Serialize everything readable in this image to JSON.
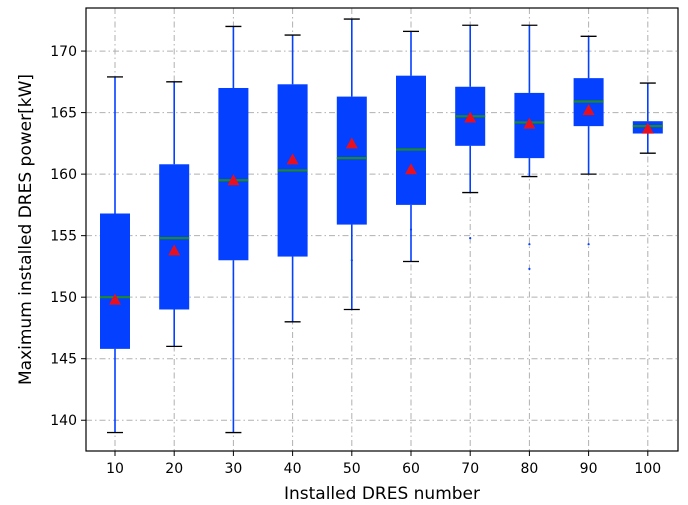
{
  "chart_data": {
    "type": "box",
    "xlabel": "Installed DRES number",
    "ylabel": "Maximum installed DRES power[kW]",
    "categories": [
      "10",
      "20",
      "30",
      "40",
      "50",
      "60",
      "70",
      "80",
      "90",
      "100"
    ],
    "ylim": [
      137.5,
      173.5
    ],
    "yticks": [
      140,
      145,
      150,
      155,
      160,
      165,
      170
    ],
    "grid": true,
    "colors": {
      "box": "#0340ff",
      "median": "#1f8a24",
      "mean_marker": "#e8101e",
      "whisker_cap": "#000000"
    },
    "boxes": [
      {
        "category": "10",
        "whisker_low": 139.0,
        "q1": 145.8,
        "median": 150.0,
        "q3": 156.8,
        "whisker_high": 167.9,
        "mean": 149.8,
        "outliers": []
      },
      {
        "category": "20",
        "whisker_low": 146.0,
        "q1": 149.0,
        "median": 154.8,
        "q3": 160.8,
        "whisker_high": 167.5,
        "mean": 153.8,
        "outliers": []
      },
      {
        "category": "30",
        "whisker_low": 139.0,
        "q1": 153.0,
        "median": 159.5,
        "q3": 167.0,
        "whisker_high": 172.0,
        "mean": 159.5,
        "outliers": []
      },
      {
        "category": "40",
        "whisker_low": 148.0,
        "q1": 153.3,
        "median": 160.3,
        "q3": 167.3,
        "whisker_high": 171.3,
        "mean": 161.2,
        "outliers": []
      },
      {
        "category": "50",
        "whisker_low": 149.0,
        "q1": 155.9,
        "median": 161.3,
        "q3": 166.3,
        "whisker_high": 172.6,
        "mean": 162.5,
        "outliers": [
          153.0
        ]
      },
      {
        "category": "60",
        "whisker_low": 152.9,
        "q1": 157.5,
        "median": 162.0,
        "q3": 168.0,
        "whisker_high": 171.6,
        "mean": 160.4,
        "outliers": [
          155.5
        ]
      },
      {
        "category": "70",
        "whisker_low": 158.5,
        "q1": 162.3,
        "median": 164.7,
        "q3": 167.1,
        "whisker_high": 172.1,
        "mean": 164.6,
        "outliers": [
          154.8
        ]
      },
      {
        "category": "80",
        "whisker_low": 159.8,
        "q1": 161.3,
        "median": 164.2,
        "q3": 166.6,
        "whisker_high": 172.1,
        "mean": 164.1,
        "outliers": [
          154.3,
          152.3
        ]
      },
      {
        "category": "90",
        "whisker_low": 160.0,
        "q1": 163.9,
        "median": 165.9,
        "q3": 167.8,
        "whisker_high": 171.2,
        "mean": 165.2,
        "outliers": [
          154.3
        ]
      },
      {
        "category": "100",
        "whisker_low": 161.7,
        "q1": 163.3,
        "median": 163.9,
        "q3": 164.3,
        "whisker_high": 167.4,
        "mean": 163.7,
        "outliers": []
      }
    ]
  }
}
